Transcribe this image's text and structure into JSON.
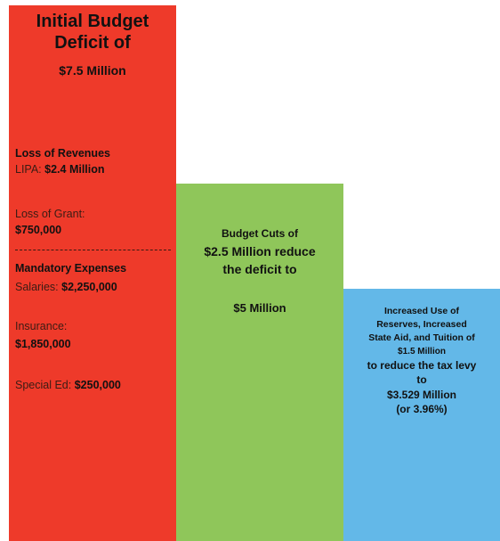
{
  "colors": {
    "initial": "#ee3a2a",
    "cuts": "#8fc65a",
    "reserves": "#63b8e8"
  },
  "initial": {
    "title_line1": "Initial Budget",
    "title_line2": "Deficit of",
    "title_line3": "$7.5 Million",
    "loss_header": "Loss of Revenues",
    "lipa_label": "LIPA:",
    "lipa_value": "$2.4 Million",
    "grant_label": "Loss of Grant:",
    "grant_value": "$750,000",
    "mandatory_header": "Mandatory Expenses",
    "salaries_label": "Salaries:",
    "salaries_value": "$2,250,000",
    "insurance_label": "Insurance:",
    "insurance_value": "$1,850,000",
    "specialed_label": "Special Ed:",
    "specialed_value": "$250,000"
  },
  "cuts": {
    "line1": "Budget Cuts of",
    "line2": "$2.5 Million reduce",
    "line3": "the deficit to",
    "line4": "$5 Million"
  },
  "reserves": {
    "line1": "Increased Use of",
    "line2": "Reserves, Increased",
    "line3": "State Aid, and Tuition of",
    "line4": "$1.5 Million",
    "line5": "to reduce the tax levy",
    "line6": "to",
    "line7": "$3.529 Million",
    "line8": "(or 3.96%)"
  },
  "chart_data": {
    "type": "bar",
    "categories": [
      "Initial Budget Deficit",
      "Budget Cuts",
      "Increased Use of Reserves"
    ],
    "values": [
      7.5,
      5,
      3.529
    ],
    "ylim": [
      0,
      7.5
    ]
  }
}
